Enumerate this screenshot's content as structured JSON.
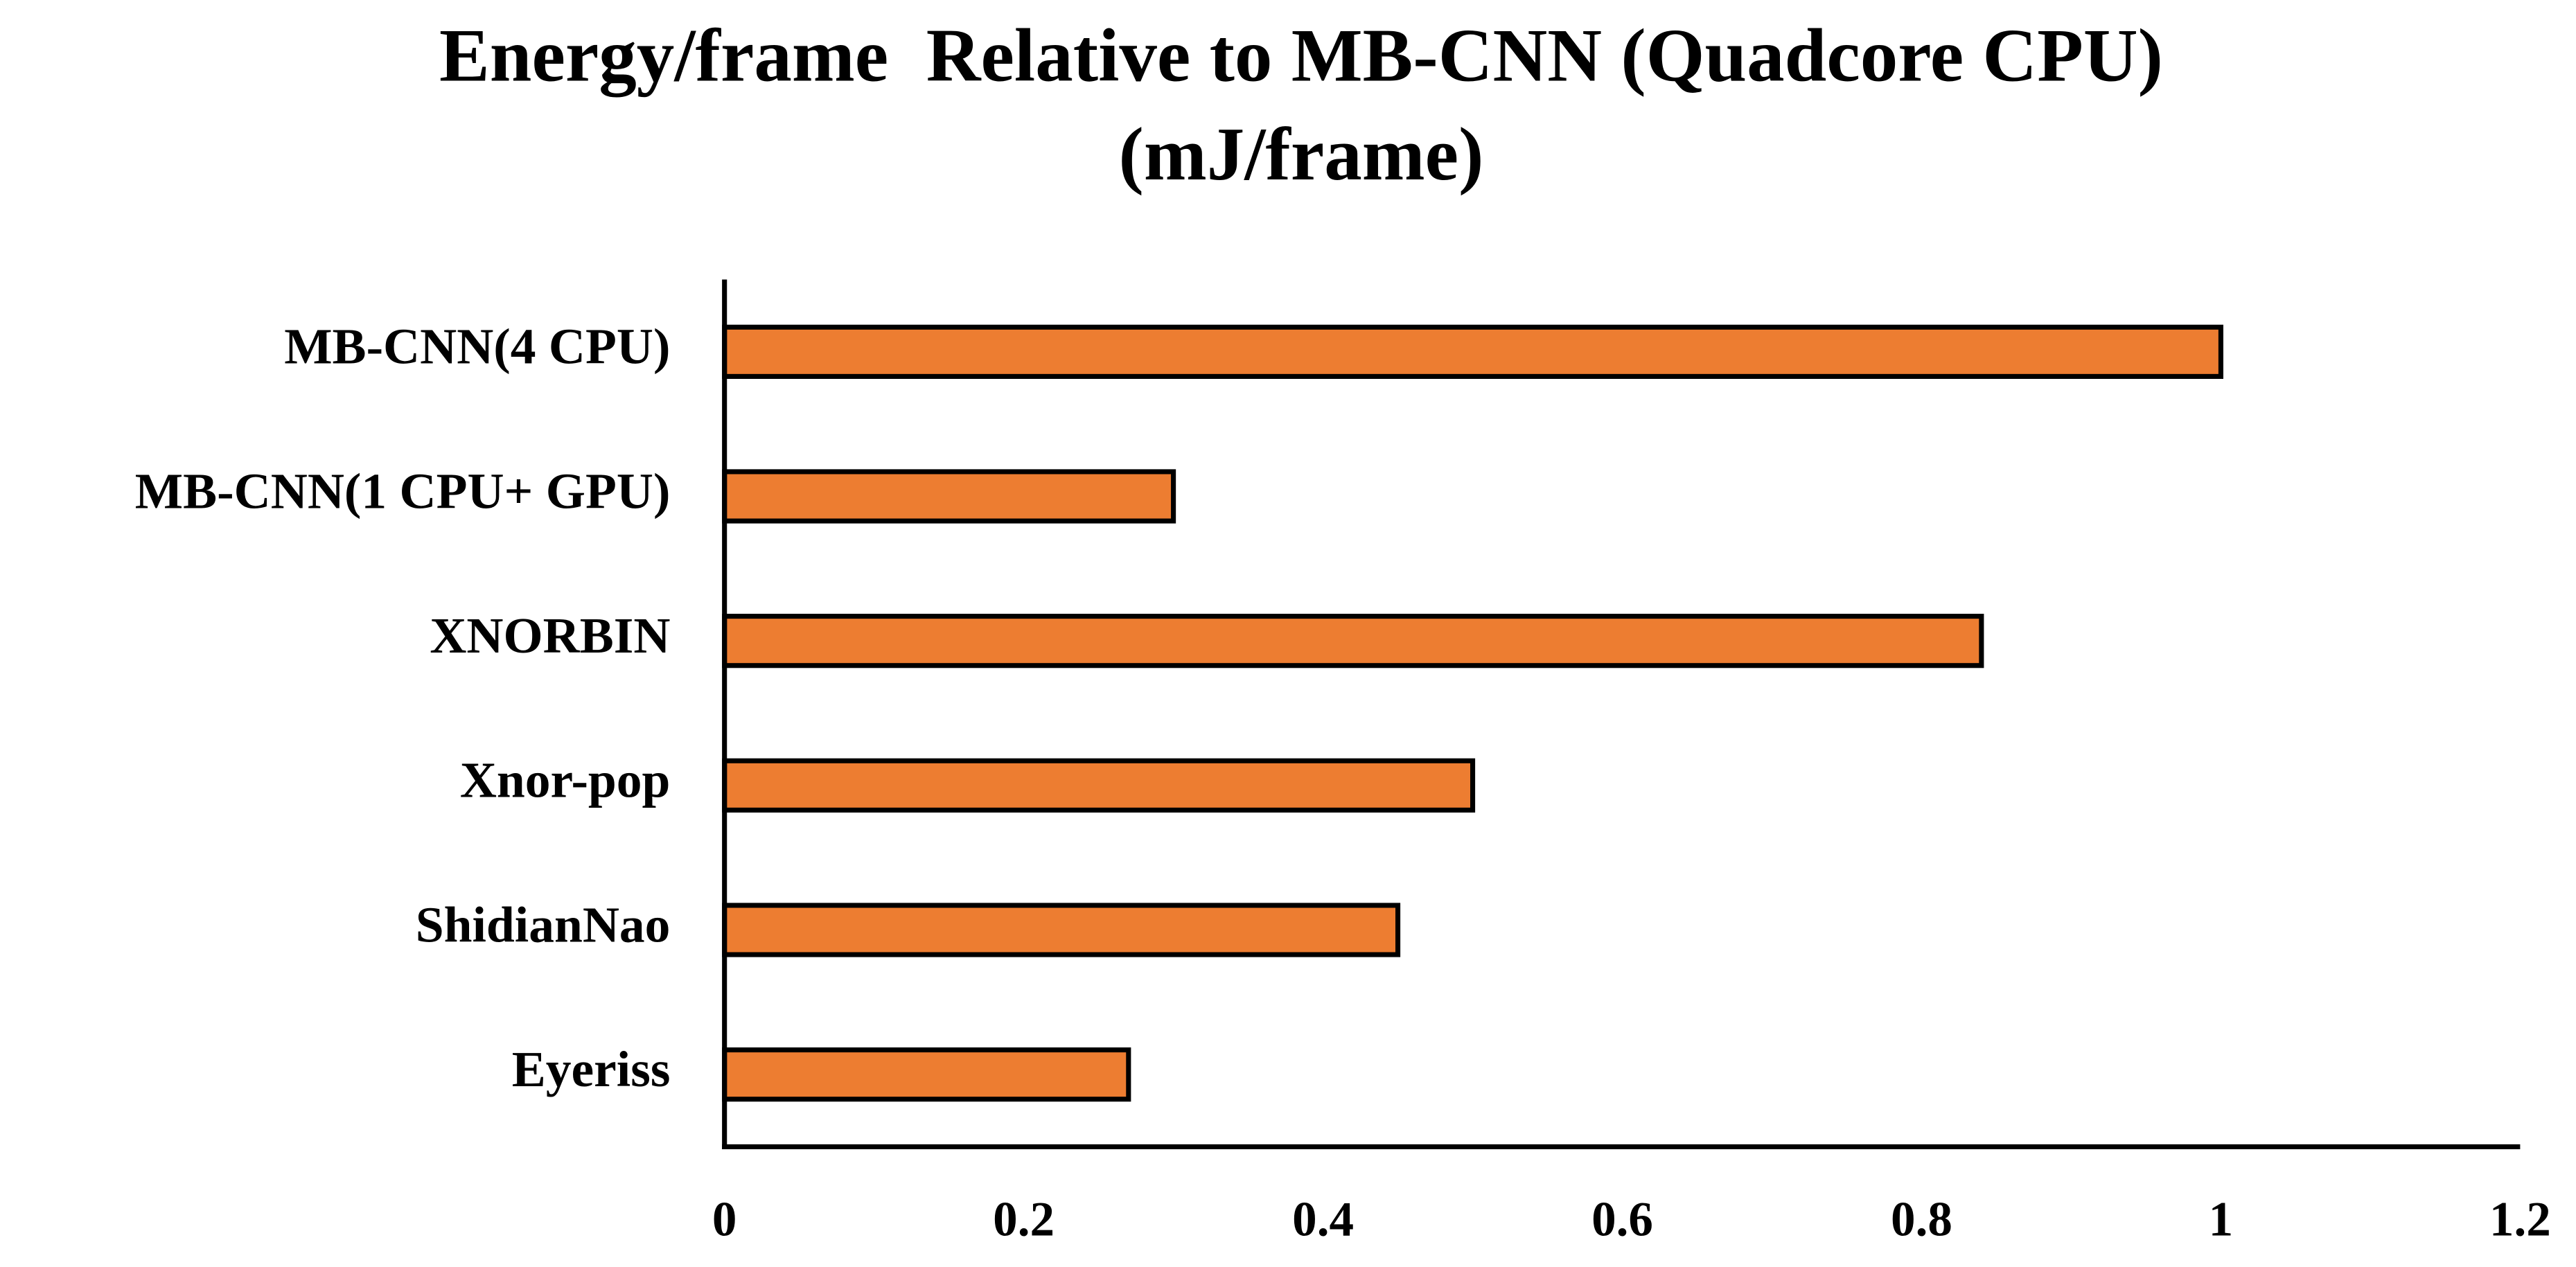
{
  "chart_data": {
    "type": "bar",
    "orientation": "horizontal",
    "title": "Energy/frame  Relative to MB-CNN (Quadcore CPU)(mJ/frame)",
    "categories": [
      "MB-CNN(4 CPU)",
      "MB-CNN(1 CPU+ GPU)",
      "XNORBIN",
      "Xnor-pop",
      "ShidianNao",
      "Eyeriss"
    ],
    "values": [
      1.0,
      0.3,
      0.84,
      0.5,
      0.45,
      0.27
    ],
    "color": "#ED7D31",
    "xlim": [
      0,
      1.2
    ],
    "xticks": [
      0,
      0.2,
      0.4,
      0.6,
      0.8,
      1,
      1.2
    ],
    "grid": false
  }
}
